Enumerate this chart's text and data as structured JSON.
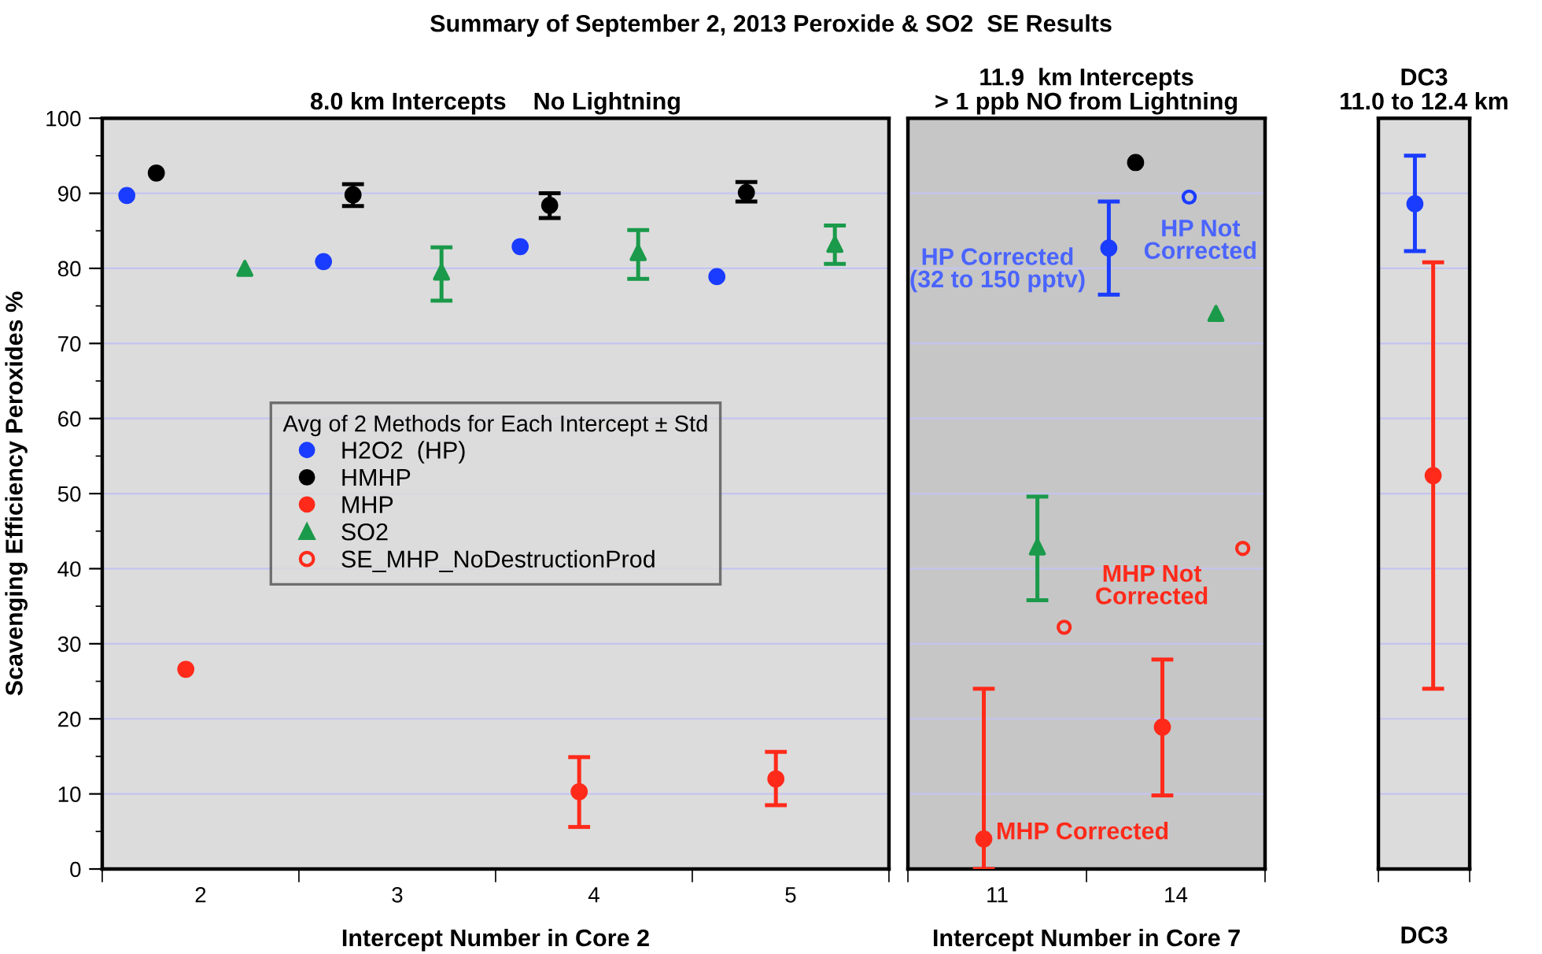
{
  "chart_data": [
    {
      "type": "scatter",
      "title": "Summary of September 2, 2013 Peroxide & SO2  SE Results",
      "subtitle": "8.0 km Intercepts    No Lightning",
      "xlabel": "Intercept Number in Core 2",
      "ylabel": "Scavenging Efficiency Peroxides %",
      "legend_title": "Avg of 2 Methods for Each Intercept ± Std",
      "legend": "center",
      "grid": "y",
      "categories": [
        "2",
        "3",
        "4",
        "5"
      ],
      "ylim": [
        0,
        100
      ],
      "yticks": [
        0,
        {
          "value": 5,
          "label": null
        },
        10,
        {
          "value": 15,
          "label": null
        },
        20,
        {
          "value": 25,
          "label": null
        },
        30,
        {
          "value": 35,
          "label": null
        },
        40,
        {
          "value": 45,
          "label": null
        },
        50,
        {
          "value": 55,
          "label": null
        },
        60,
        {
          "value": 65,
          "label": null
        },
        70,
        {
          "value": 75,
          "label": null
        },
        80,
        {
          "value": 85,
          "label": null
        },
        90,
        {
          "value": 95,
          "label": null
        },
        100
      ],
      "series": [
        {
          "name": "H2O2  (HP)",
          "color": "#1a3cff",
          "marker": "circle",
          "values": [
            89.7,
            80.9,
            82.9,
            78.9
          ]
        },
        {
          "name": "HMHP",
          "color": "#000000",
          "marker": "circle",
          "values": [
            92.7,
            89.8,
            88.4,
            90.1
          ],
          "errors": [
            null,
            [
              88.3,
              91.2
            ],
            [
              86.7,
              90.0
            ],
            [
              88.9,
              91.5
            ]
          ]
        },
        {
          "name": "MHP",
          "color": "#ff2a1a",
          "marker": "circle",
          "values": [
            26.6,
            null,
            10.3,
            12.0
          ],
          "errors": [
            null,
            null,
            [
              5.6,
              14.9
            ],
            [
              8.5,
              15.6
            ]
          ]
        },
        {
          "color": "#1a3cff",
          "marker": "open circle",
          "values": [
            null,
            null,
            null,
            null
          ]
        },
        {
          "name": "SO2",
          "color": "#1a9a4a",
          "marker": "triangle",
          "values": [
            80.0,
            79.5,
            82.1,
            83.2
          ],
          "errors": [
            null,
            [
              75.7,
              82.8
            ],
            [
              78.6,
              85.1
            ],
            [
              80.6,
              85.7
            ]
          ]
        },
        {
          "name": "SE_MHP_NoDestructionProd",
          "color": "#ff2a1a",
          "marker": "open circle",
          "values": [
            null,
            null,
            null,
            null
          ]
        }
      ]
    },
    {
      "type": "scatter",
      "title": "11.9  km Intercepts\n> 1 ppb NO from Lightning",
      "xlabel": "Intercept Number in Core 7",
      "grid": "y",
      "tick_labels": "x",
      "categories": [
        "11",
        "14"
      ],
      "ylim": [
        0,
        100
      ],
      "yticks": [
        0,
        10,
        20,
        30,
        40,
        50,
        60,
        70,
        80,
        90,
        100
      ],
      "series": [
        {
          "color": "#1a3cff",
          "marker": "circle",
          "values": [
            null,
            82.7
          ],
          "errors": [
            null,
            [
              76.5,
              88.9
            ]
          ]
        },
        {
          "color": "#000000",
          "marker": "circle",
          "values": [
            null,
            94.1
          ]
        },
        {
          "color": "#ff2a1a",
          "marker": "circle",
          "values": [
            4.0,
            18.9
          ],
          "errors": [
            [
              0,
              24.0
            ],
            [
              9.8,
              27.9
            ]
          ]
        },
        {
          "color": "#1a3cff",
          "marker": "open circle",
          "values": [
            null,
            89.5
          ]
        },
        {
          "color": "#1a9a4a",
          "marker": "triangle",
          "values": [
            42.9,
            74.0
          ],
          "errors": [
            [
              35.8,
              49.6
            ],
            null
          ]
        },
        {
          "color": "#ff2a1a",
          "marker": "open circle",
          "values": [
            32.2,
            42.7
          ]
        }
      ],
      "annotations": [
        "HP Corrected\n(32 to 150 pptv)",
        "HP Not\nCorrected",
        "MHP Not\nCorrected",
        "MHP Corrected"
      ]
    },
    {
      "type": "scatter",
      "title": "DC3\n11.0 to 12.4 km",
      "grid": "y",
      "tick_labels": "x",
      "categories": [
        "DC3"
      ],
      "ylim": [
        0,
        100
      ],
      "yticks": [
        0,
        10,
        20,
        30,
        40,
        50,
        60,
        70,
        80,
        90,
        100
      ],
      "series": [
        {
          "color": "#1a3cff",
          "marker": "circle",
          "values": [
            88.6
          ],
          "errors": [
            [
              82.3,
              95.0
            ]
          ]
        },
        {
          "color": "#ff2a1a",
          "marker": "circle",
          "values": [
            52.4
          ],
          "errors": [
            [
              24.0,
              80.8
            ]
          ]
        }
      ]
    }
  ]
}
